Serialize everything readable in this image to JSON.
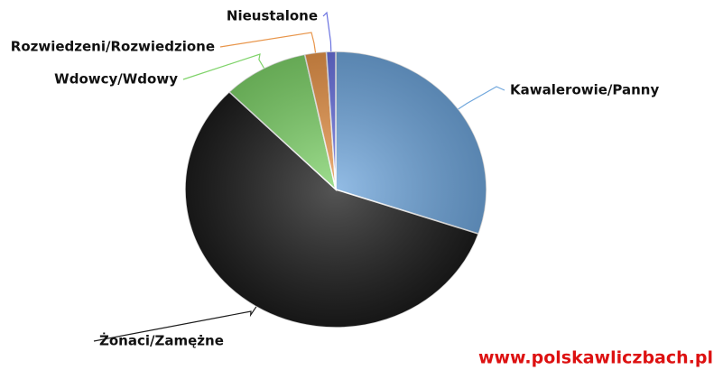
{
  "chart_data": {
    "type": "pie",
    "categories": [
      "Kawalerowie/Panny",
      "Żonaci/Zamężne",
      "Wdowcy/Wdowy",
      "Rozwiedzeni/Rozwiedzione",
      "Nieustalone"
    ],
    "values": [
      30.2,
      57.3,
      9.2,
      2.3,
      1.0
    ],
    "colors": [
      "#6fa6dc",
      "#1c1c1c",
      "#7fd36a",
      "#e8954a",
      "#6a72e0"
    ],
    "watermark": "www.polskawliczbach.pl"
  }
}
